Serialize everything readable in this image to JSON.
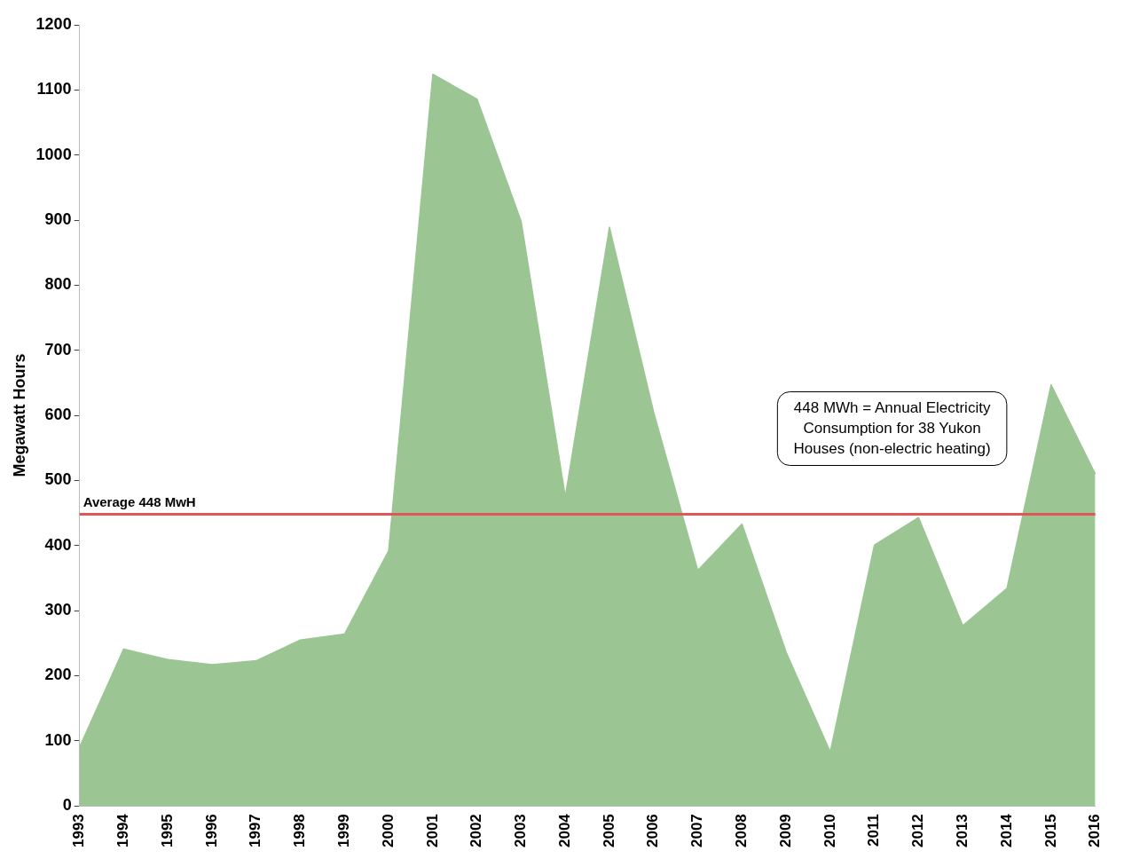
{
  "chart_data": {
    "type": "area",
    "ylabel": "Megawatt Hours",
    "categories": [
      "1993",
      "1994",
      "1995",
      "1996",
      "1997",
      "1998",
      "1999",
      "2000",
      "2001",
      "2002",
      "2003",
      "2004",
      "2005",
      "2006",
      "2007",
      "2008",
      "2009",
      "2010",
      "2011",
      "2012",
      "2013",
      "2014",
      "2015",
      "2016"
    ],
    "values": [
      90,
      241,
      225,
      217,
      223,
      255,
      264,
      392,
      1124,
      1086,
      898,
      475,
      889,
      605,
      362,
      433,
      236,
      83,
      401,
      443,
      277,
      334,
      647,
      510
    ],
    "color": "#9bc693",
    "ylim": [
      0,
      1200
    ],
    "yticks": [
      0,
      100,
      200,
      300,
      400,
      500,
      600,
      700,
      800,
      900,
      1000,
      1100,
      1200
    ],
    "ref_lines": [
      {
        "axis": "y",
        "value": 448,
        "label": "Average 448 MwH",
        "color": "#e15759"
      }
    ],
    "annotations": [
      "448 MWh = Annual Electricity Consumption for 38 Yukon Houses (non-electric heating)"
    ],
    "grid": false,
    "legend": false
  }
}
